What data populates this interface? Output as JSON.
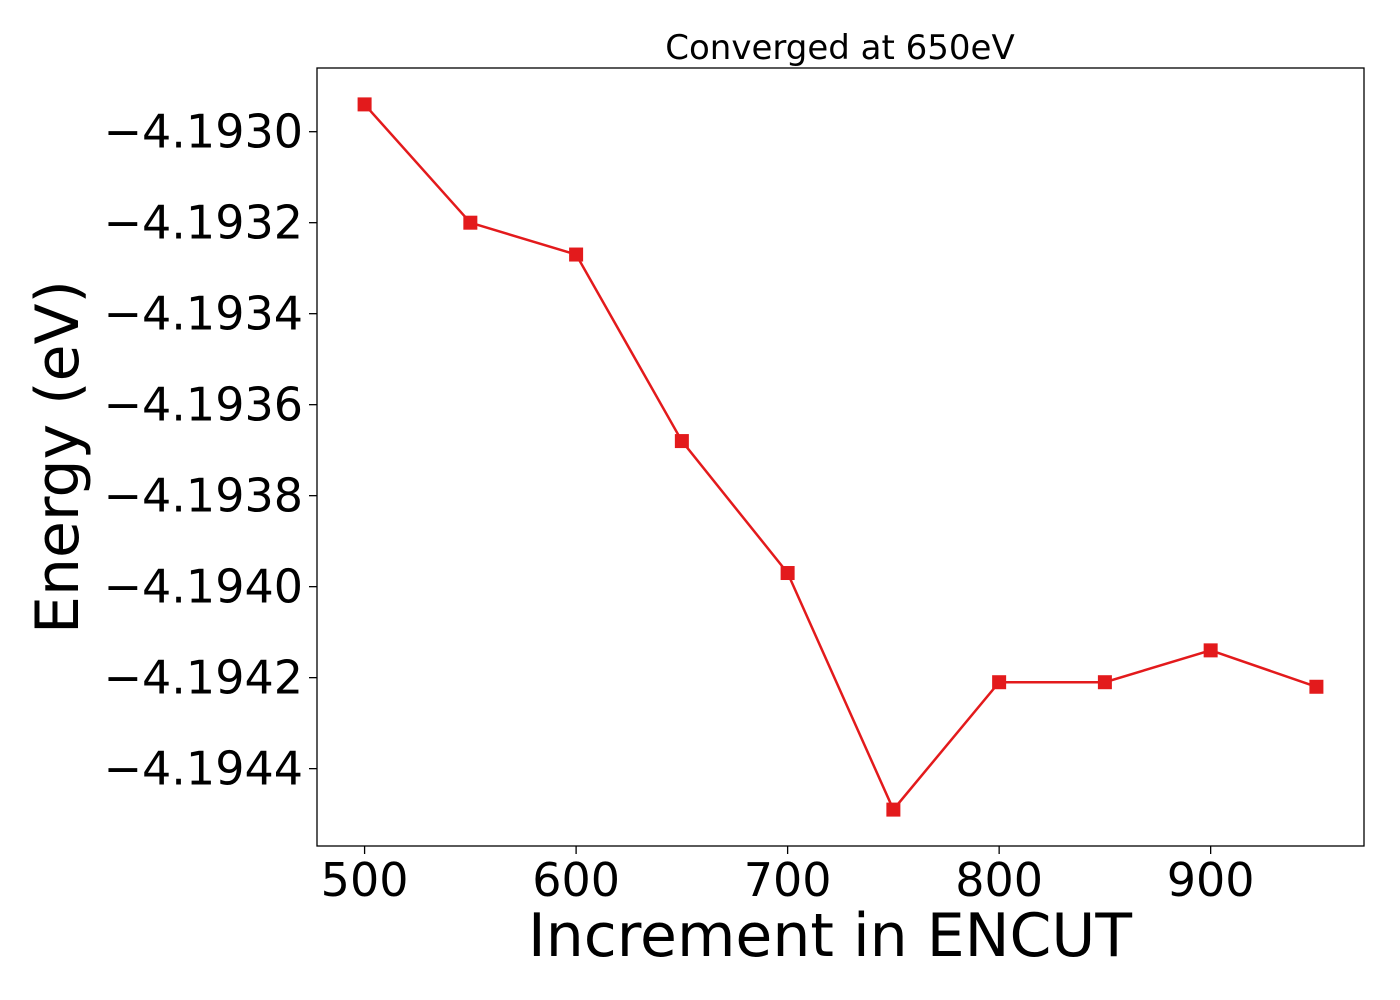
{
  "chart_data": {
    "type": "line",
    "title": "Converged at 650eV",
    "xlabel": "Increment in ENCUT",
    "ylabel": "Energy (eV)",
    "xlim": [
      477.5,
      972.5
    ],
    "ylim": [
      -4.19457,
      -4.19286
    ],
    "x_ticks": [
      500,
      600,
      700,
      800,
      900
    ],
    "x_tick_labels": [
      "500",
      "600",
      "700",
      "800",
      "900"
    ],
    "y_ticks": [
      -4.193,
      -4.1932,
      -4.1934,
      -4.1936,
      -4.1938,
      -4.194,
      -4.1942,
      -4.1944
    ],
    "y_tick_labels": [
      "−4.1930",
      "−4.1932",
      "−4.1934",
      "−4.1936",
      "−4.1938",
      "−4.1940",
      "−4.1942",
      "−4.1944"
    ],
    "grid": false,
    "series": [
      {
        "color": "#e31a1c",
        "marker": "square",
        "x": [
          500,
          550,
          600,
          650,
          700,
          750,
          800,
          850,
          900,
          950
        ],
        "y": [
          -4.19294,
          -4.1932,
          -4.19327,
          -4.19368,
          -4.19397,
          -4.19449,
          -4.19421,
          -4.19421,
          -4.19414,
          -4.19422
        ]
      }
    ]
  }
}
